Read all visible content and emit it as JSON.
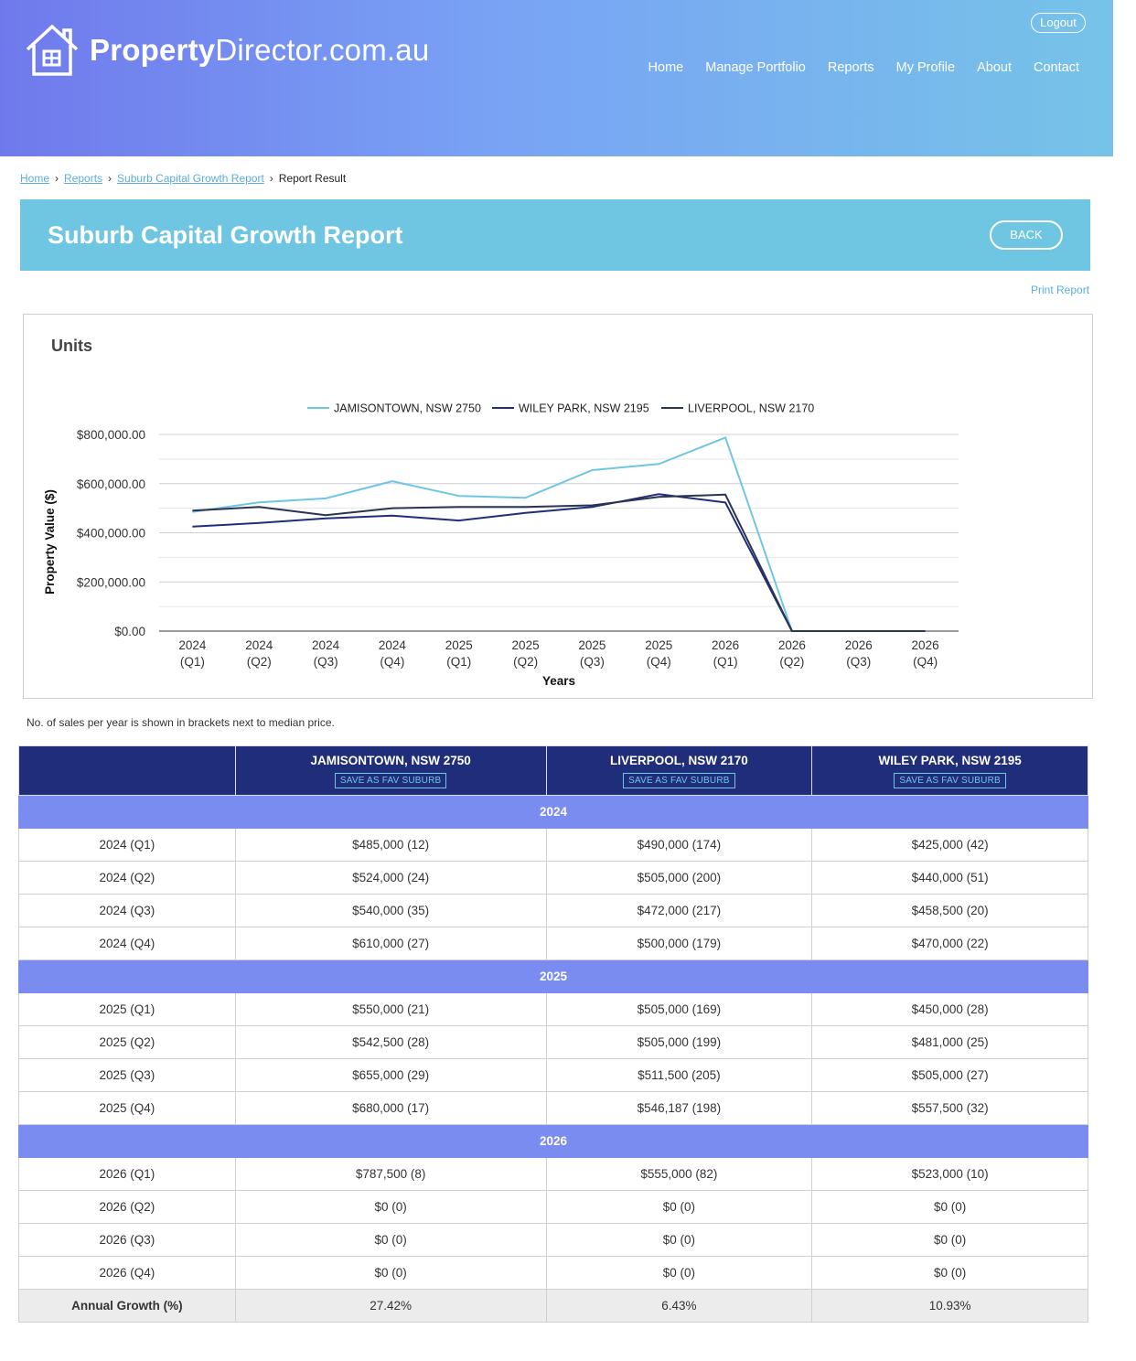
{
  "header": {
    "logo_bold": "Property",
    "logo_light": "Director.com.au",
    "logout": "Logout",
    "nav": [
      "Home",
      "Manage Portfolio",
      "Reports",
      "My Profile",
      "About",
      "Contact"
    ]
  },
  "breadcrumb": {
    "items": [
      "Home",
      "Reports",
      "Suburb Capital Growth Report"
    ],
    "current": "Report Result"
  },
  "page": {
    "title": "Suburb Capital Growth Report",
    "back": "BACK",
    "print": "Print Report",
    "note": "No. of sales per year is shown in brackets next to median price."
  },
  "chart_title": "Units",
  "chart_data": {
    "type": "line",
    "title": "",
    "xlabel": "Years",
    "ylabel": "Property Value ($)",
    "categories": [
      [
        "2024",
        "(Q1)"
      ],
      [
        "2024",
        "(Q2)"
      ],
      [
        "2024",
        "(Q3)"
      ],
      [
        "2024",
        "(Q4)"
      ],
      [
        "2025",
        "(Q1)"
      ],
      [
        "2025",
        "(Q2)"
      ],
      [
        "2025",
        "(Q3)"
      ],
      [
        "2025",
        "(Q4)"
      ],
      [
        "2026",
        "(Q1)"
      ],
      [
        "2026",
        "(Q2)"
      ],
      [
        "2026",
        "(Q3)"
      ],
      [
        "2026",
        "(Q4)"
      ]
    ],
    "ylim": [
      0,
      800000
    ],
    "yticks": [
      0,
      200000,
      400000,
      600000,
      800000
    ],
    "ytick_labels": [
      "$0.00",
      "$200,000.00",
      "$400,000.00",
      "$600,000.00",
      "$800,000.00"
    ],
    "grid": true,
    "legend_position": "top-center",
    "series": [
      {
        "name": "JAMISONTOWN, NSW 2750",
        "color": "#6fc6e3",
        "values": [
          485000,
          524000,
          540000,
          610000,
          550000,
          542500,
          655000,
          680000,
          787500,
          0,
          0,
          0
        ]
      },
      {
        "name": "WILEY PARK, NSW 2195",
        "color": "#1f2d7b",
        "values": [
          425000,
          440000,
          458500,
          470000,
          450000,
          481000,
          505000,
          557500,
          523000,
          0,
          0,
          0
        ]
      },
      {
        "name": "LIVERPOOL, NSW 2170",
        "color": "#2b3452",
        "values": [
          490000,
          505000,
          472000,
          500000,
          505000,
          505000,
          511500,
          546187,
          555000,
          0,
          0,
          0
        ]
      }
    ]
  },
  "table": {
    "columns": [
      "JAMISONTOWN, NSW 2750",
      "LIVERPOOL, NSW 2170",
      "WILEY PARK, NSW 2195"
    ],
    "fav_label": "SAVE AS FAV SUBURB",
    "groups": [
      {
        "year": "2024",
        "rows": [
          [
            "2024 (Q1)",
            "$485,000 (12)",
            "$490,000 (174)",
            "$425,000 (42)"
          ],
          [
            "2024 (Q2)",
            "$524,000 (24)",
            "$505,000 (200)",
            "$440,000 (51)"
          ],
          [
            "2024 (Q3)",
            "$540,000 (35)",
            "$472,000 (217)",
            "$458,500 (20)"
          ],
          [
            "2024 (Q4)",
            "$610,000 (27)",
            "$500,000 (179)",
            "$470,000 (22)"
          ]
        ]
      },
      {
        "year": "2025",
        "rows": [
          [
            "2025 (Q1)",
            "$550,000 (21)",
            "$505,000 (169)",
            "$450,000 (28)"
          ],
          [
            "2025 (Q2)",
            "$542,500 (28)",
            "$505,000 (199)",
            "$481,000 (25)"
          ],
          [
            "2025 (Q3)",
            "$655,000 (29)",
            "$511,500 (205)",
            "$505,000 (27)"
          ],
          [
            "2025 (Q4)",
            "$680,000 (17)",
            "$546,187 (198)",
            "$557,500 (32)"
          ]
        ]
      },
      {
        "year": "2026",
        "rows": [
          [
            "2026 (Q1)",
            "$787,500 (8)",
            "$555,000 (82)",
            "$523,000 (10)"
          ],
          [
            "2026 (Q2)",
            "$0 (0)",
            "$0 (0)",
            "$0 (0)"
          ],
          [
            "2026 (Q3)",
            "$0 (0)",
            "$0 (0)",
            "$0 (0)"
          ],
          [
            "2026 (Q4)",
            "$0 (0)",
            "$0 (0)",
            "$0 (0)"
          ]
        ]
      }
    ],
    "growth": [
      "Annual Growth (%)",
      "27.42%",
      "6.43%",
      "10.93%"
    ]
  }
}
